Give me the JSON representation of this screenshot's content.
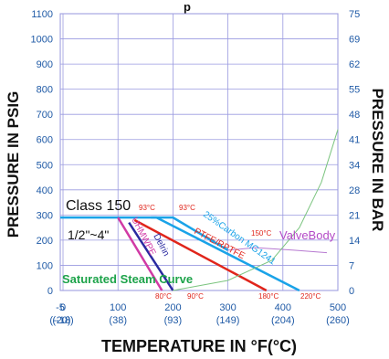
{
  "chart_data": {
    "type": "line",
    "title_fragment": "p",
    "xlabel": "TEMPERATURE IN °F(°C)",
    "ylabel_left": "PRESSURE IN PSIG",
    "ylabel_right": "PRESSURE IN BAR",
    "xlim": [
      -5,
      500
    ],
    "ylim": [
      0,
      1100
    ],
    "grid": true,
    "x_ticks": [
      {
        "value": -5,
        "f": "-5",
        "c": "(-20)"
      },
      {
        "value": 0,
        "f": "0",
        "c": "(-18)"
      },
      {
        "value": 100,
        "f": "100",
        "c": "(38)"
      },
      {
        "value": 200,
        "f": "200",
        "c": "(93)"
      },
      {
        "value": 300,
        "f": "300",
        "c": "(149)"
      },
      {
        "value": 400,
        "f": "400",
        "c": "(204)"
      },
      {
        "value": 500,
        "f": "500",
        "c": "(260)"
      }
    ],
    "y_ticks_left": [
      "0",
      "100",
      "200",
      "300",
      "400",
      "500",
      "600",
      "700",
      "800",
      "900",
      "1000",
      "1100"
    ],
    "y_ticks_right": [
      "0",
      "7",
      "14",
      "21",
      "28",
      "34",
      "41",
      "48",
      "55",
      "62",
      "69",
      "75"
    ],
    "series": [
      {
        "name": "ValveBody",
        "color": "#1aa3e8",
        "x": [
          -5,
          170,
          430
        ],
        "y": [
          290,
          290,
          0
        ]
      },
      {
        "name": "25%Carbon MG1241",
        "color": "#1aa3e8",
        "x": [
          160,
          200,
          300
        ],
        "y": [
          290,
          290,
          160
        ]
      },
      {
        "name": "PTFE/RPTFE",
        "color": "#e0251b",
        "x": [
          130,
          370
        ],
        "y": [
          280,
          0
        ]
      },
      {
        "name": "Delrin",
        "color": "#2a2aa0",
        "x": [
          120,
          200
        ],
        "y": [
          270,
          0
        ]
      },
      {
        "name": "UHMWPE",
        "color": "#d13aa5",
        "x": [
          100,
          180
        ],
        "y": [
          290,
          0
        ]
      },
      {
        "name": "ValveBody_curve",
        "color": "#b77ad1",
        "x": [
          300,
          350,
          420,
          480
        ],
        "y": [
          160,
          170,
          160,
          150
        ]
      },
      {
        "name": "Saturated Steam Curve",
        "color": "#7bc47f",
        "x": [
          200,
          300,
          380,
          430,
          470,
          500
        ],
        "y": [
          0,
          40,
          120,
          250,
          430,
          640
        ]
      }
    ],
    "annotations": {
      "class_label": "Class 150",
      "size_label": "1/2\"~4\"",
      "steam_label": "Saturated Steam Curve",
      "valvebody_label": "ValveBody",
      "carbon_label": "25%Carbon MG1241",
      "ptfe_label": "PTFE/RPTFE",
      "delrin_label": "Delrin",
      "uhmwpe_label": "UHMWPE",
      "temp_labels": [
        {
          "text": "93°C",
          "color": "#e0251b"
        },
        {
          "text": "93°C",
          "color": "#e0251b"
        },
        {
          "text": "150°C",
          "color": "#e0251b"
        },
        {
          "text": "80°C",
          "color": "#e0251b"
        },
        {
          "text": "90°C",
          "color": "#e0251b"
        },
        {
          "text": "180°C",
          "color": "#e0251b"
        },
        {
          "text": "220°C",
          "color": "#e0251b"
        }
      ]
    }
  }
}
